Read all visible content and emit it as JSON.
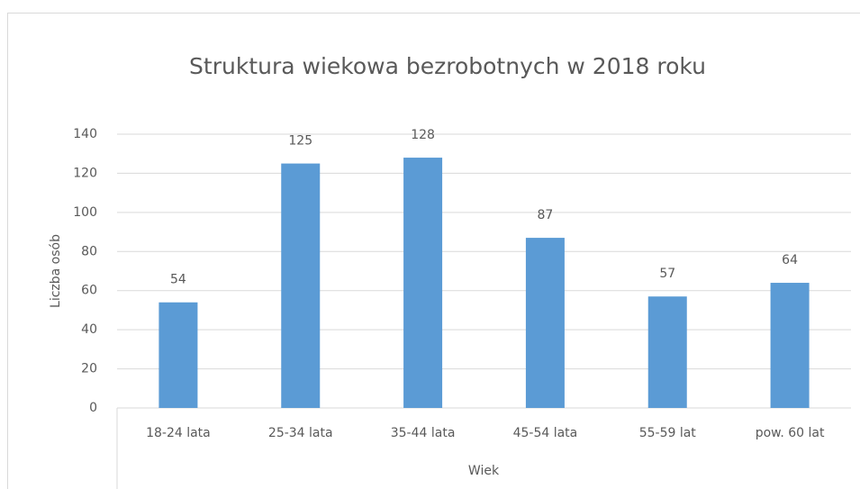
{
  "chart_data": {
    "type": "bar",
    "title": "Struktura wiekowa bezrobotnych w 2018 roku",
    "x_label": "Wiek",
    "y_label": "Liczba osób",
    "categories": [
      "18-24 lata",
      "25-34 lata",
      "35-44 lata",
      "45-54 lata",
      "55-59 lat",
      "pow. 60 lat"
    ],
    "values": [
      54,
      125,
      128,
      87,
      57,
      64
    ],
    "color": "#5b9bd5",
    "ylim": [
      0,
      140
    ],
    "yticks": [
      0,
      20,
      40,
      60,
      80,
      100,
      120,
      140
    ],
    "grid": true
  }
}
